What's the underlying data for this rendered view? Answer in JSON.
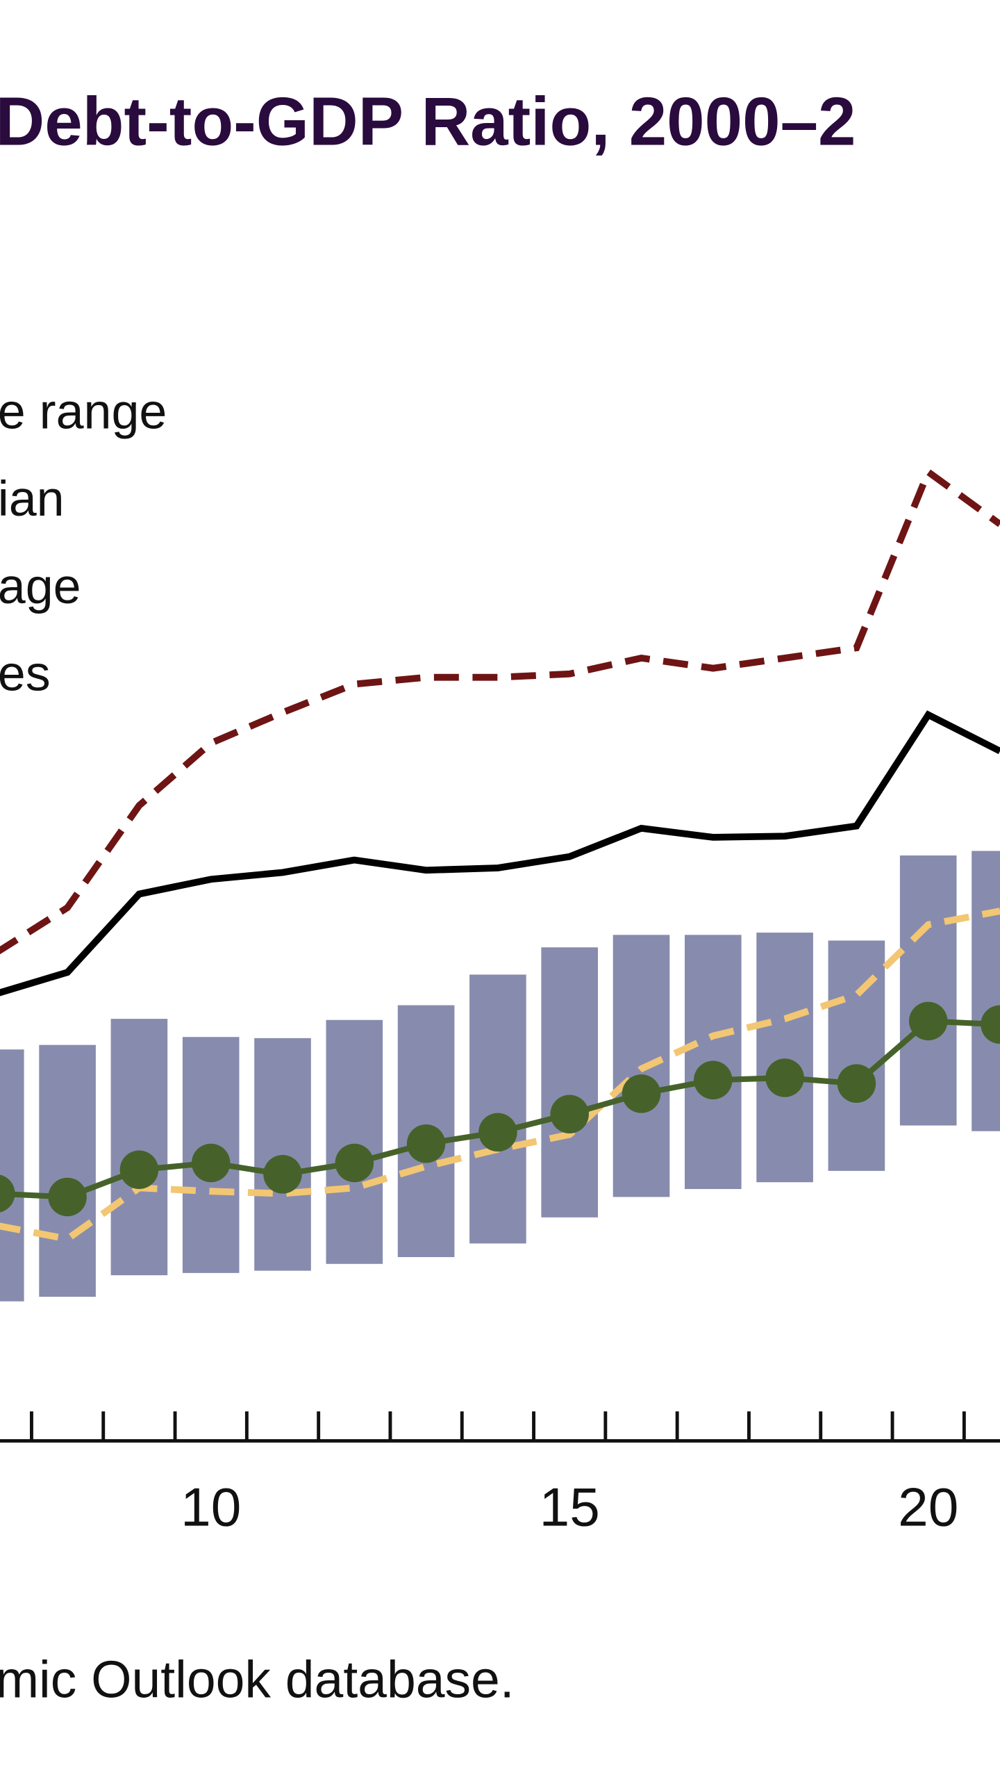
{
  "chart_data": {
    "type": "combo",
    "title": "Debt-to-GDP Ratio, 2000–2",
    "source": "mic Outlook database.",
    "x": [
      7,
      8,
      9,
      10,
      11,
      12,
      13,
      14,
      15,
      16,
      17,
      18,
      19,
      20,
      21
    ],
    "xlim": [
      7.06,
      21.0
    ],
    "xticks": [
      10,
      15,
      20
    ],
    "xminorticks": [
      7.5,
      8.5,
      9.5,
      10.5,
      11.5,
      12.5,
      13.5,
      14.5,
      15.5,
      16.5,
      17.5,
      18.5,
      19.5,
      20.5
    ],
    "ylim": [
      0,
      100
    ],
    "series": [
      {
        "name": "e range",
        "type": "range",
        "color": "#878cae",
        "high": [
          34.5,
          34.9,
          37.2,
          35.6,
          35.5,
          37.1,
          38.4,
          41.1,
          43.5,
          44.6,
          44.6,
          44.8,
          44.1,
          51.6,
          52.0
        ],
        "low": [
          12.3,
          12.7,
          14.6,
          14.8,
          15.0,
          15.6,
          16.2,
          17.4,
          19.7,
          21.5,
          22.2,
          22.8,
          23.8,
          27.8,
          27.3
        ]
      },
      {
        "name": "ian",
        "type": "line",
        "color": "#46622a",
        "marker": "circle",
        "values": [
          21.8,
          21.5,
          23.9,
          24.5,
          23.5,
          24.5,
          26.2,
          27.2,
          28.8,
          30.6,
          31.8,
          32.0,
          31.5,
          37.0,
          36.7
        ]
      },
      {
        "name": "age",
        "type": "line",
        "color": "#f3c672",
        "dash": true,
        "values": [
          19.0,
          17.8,
          22.3,
          22.0,
          21.8,
          22.3,
          24.2,
          25.7,
          27.0,
          32.8,
          35.7,
          37.2,
          39.3,
          45.5,
          46.7
        ]
      },
      {
        "name": "es",
        "type": "line",
        "color": "#000000",
        "values": [
          39.4,
          41.3,
          48.2,
          49.5,
          50.1,
          51.2,
          50.3,
          50.5,
          51.5,
          54.0,
          53.2,
          53.3,
          54.2,
          64.0,
          60.8
        ]
      },
      {
        "type": "line",
        "color": "#6e1414",
        "dash": true,
        "values": [
          43.0,
          47.0,
          56.0,
          61.5,
          64.2,
          66.7,
          67.3,
          67.3,
          67.6,
          69.0,
          68.1,
          69.0,
          69.9,
          85.4,
          80.8
        ]
      }
    ]
  }
}
